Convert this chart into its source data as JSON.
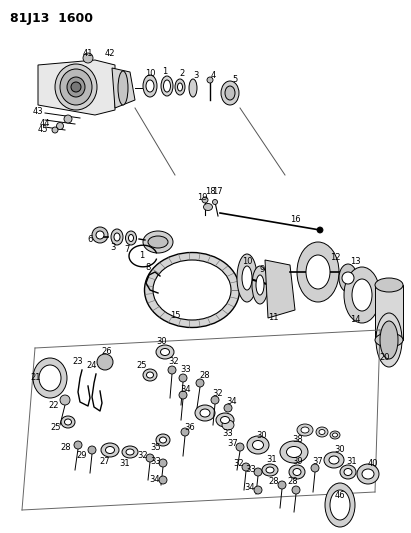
{
  "title": "81J13 1600",
  "background_color": "#f5f5f0",
  "fig_width": 4.11,
  "fig_height": 5.33,
  "dpi": 100
}
